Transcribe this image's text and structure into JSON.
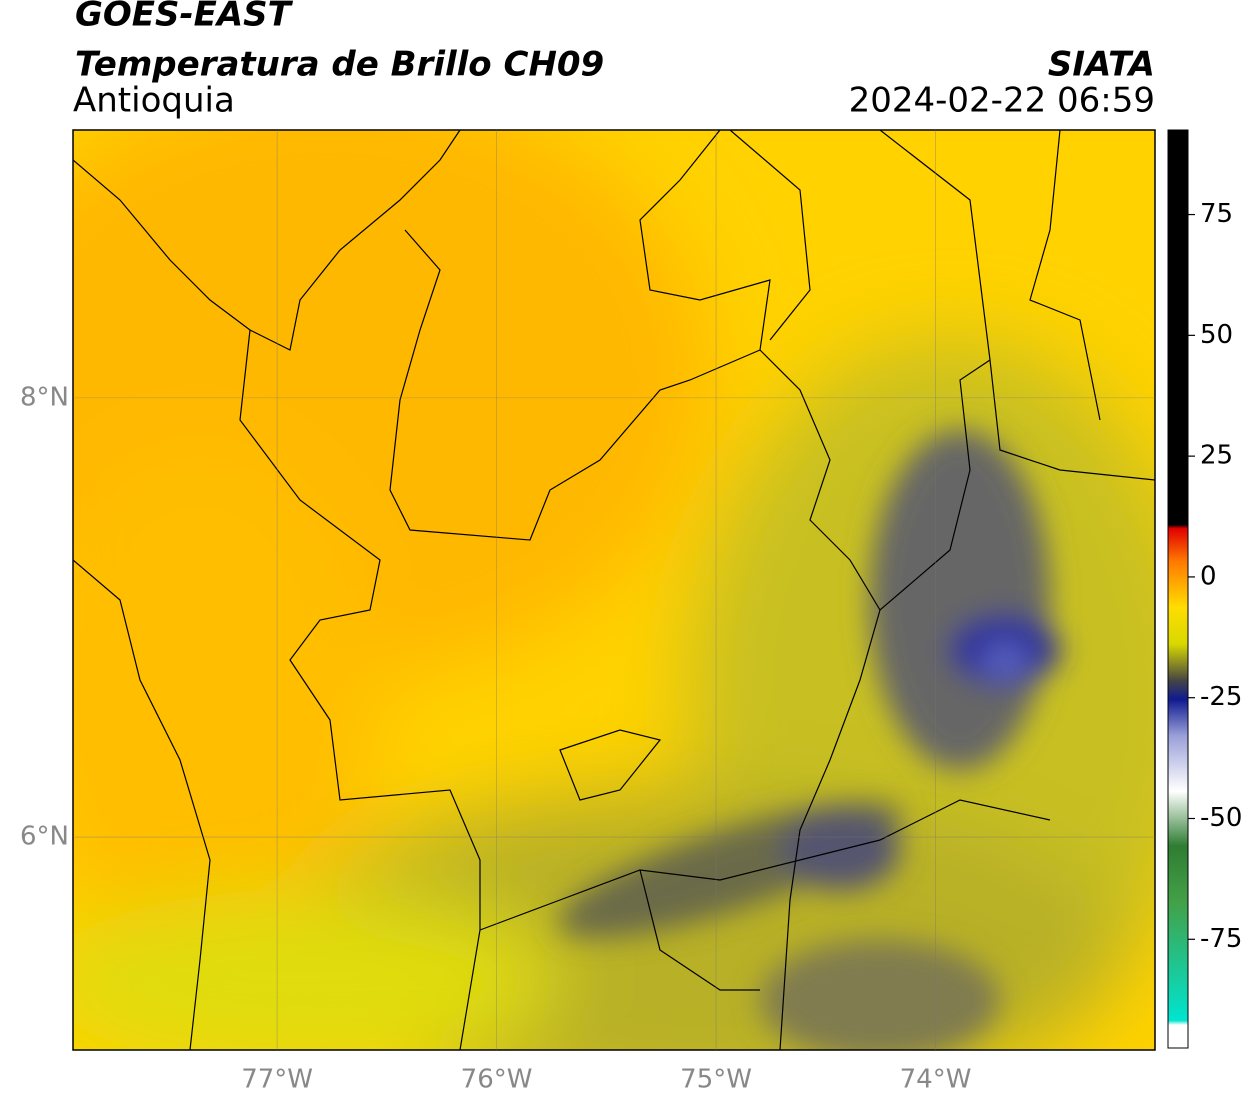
{
  "header": {
    "source": "GOES-EAST",
    "product": "Temperatura de Brillo CH09",
    "region": "Antioquia",
    "agency": "SIATA",
    "timestamp": "2024-02-22 06:59"
  },
  "map": {
    "xlim": [
      -77.93,
      -73.0
    ],
    "ylim": [
      5.03,
      9.22
    ],
    "xticks": [
      {
        "value": -77,
        "label": "77°W"
      },
      {
        "value": -76,
        "label": "76°W"
      },
      {
        "value": -75,
        "label": "75°W"
      },
      {
        "value": -74,
        "label": "74°W"
      }
    ],
    "yticks": [
      {
        "value": 6,
        "label": "6°N"
      },
      {
        "value": 8,
        "label": "8°N"
      }
    ],
    "grid": true
  },
  "colorbar": {
    "lim": [
      -97.5,
      92.5
    ],
    "ticks": [
      75,
      50,
      25,
      0,
      -25,
      -50,
      -75
    ]
  }
}
